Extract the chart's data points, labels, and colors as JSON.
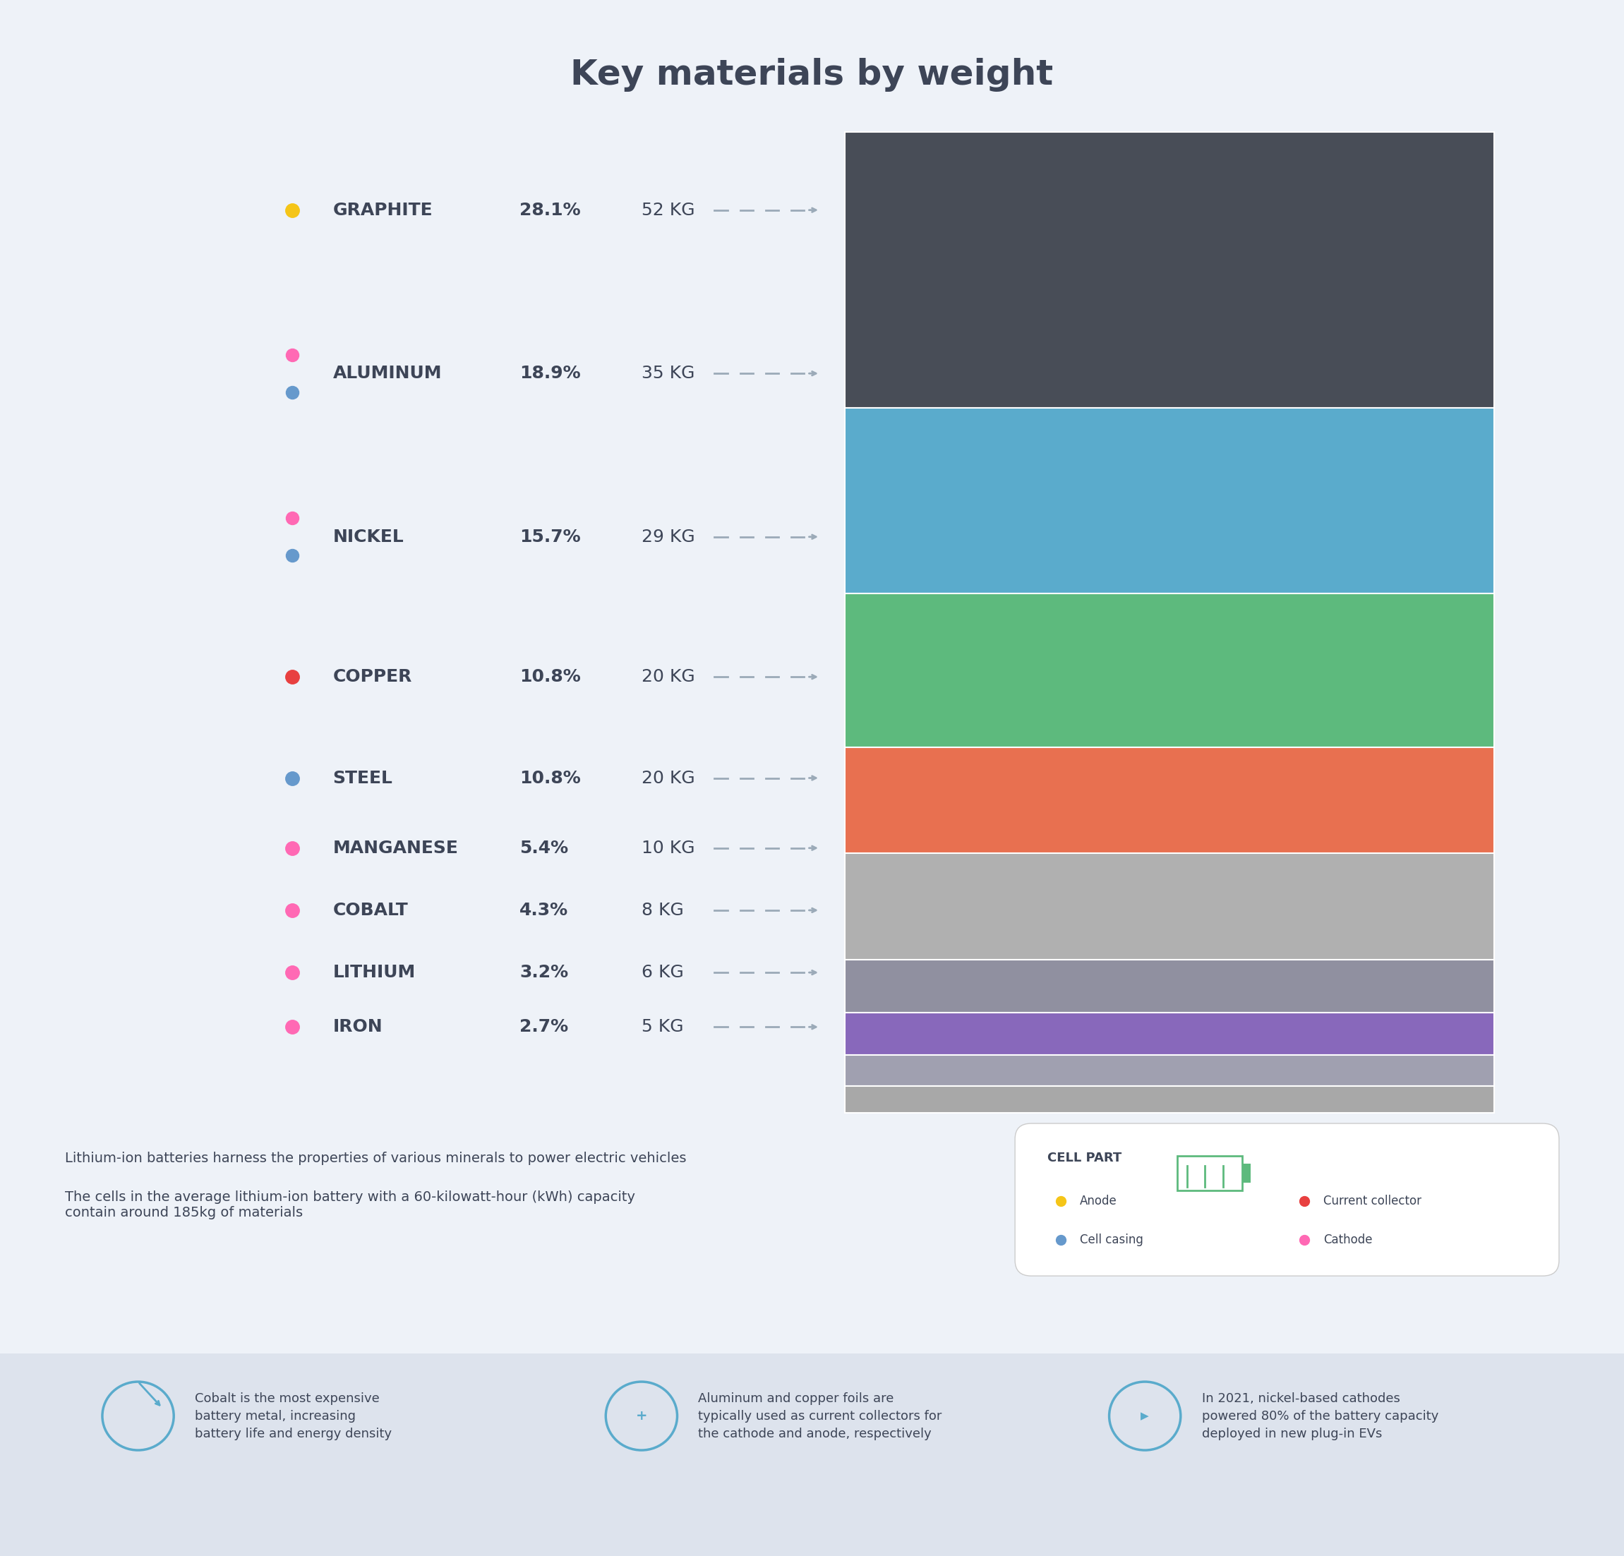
{
  "title": "Key materials by weight",
  "bg_color": "#EEF2F8",
  "footer_bg": "#DDE3ED",
  "text_color": "#3d4557",
  "materials": [
    {
      "name": "GRAPHITE",
      "pct": "28.1%",
      "kg": "52 KG",
      "dot_colors": [
        "#F5C518"
      ],
      "bar_color": "#484d57",
      "bar_height": 0.281
    },
    {
      "name": "ALUMINUM",
      "pct": "18.9%",
      "kg": "35 KG",
      "dot_colors": [
        "#FF69B4",
        "#6699CC"
      ],
      "bar_color": "#5aabcc",
      "bar_height": 0.189
    },
    {
      "name": "NICKEL",
      "pct": "15.7%",
      "kg": "29 KG",
      "dot_colors": [
        "#FF69B4",
        "#6699CC"
      ],
      "bar_color": "#5dba7d",
      "bar_height": 0.157
    },
    {
      "name": "COPPER",
      "pct": "10.8%",
      "kg": "20 KG",
      "dot_colors": [
        "#E84040"
      ],
      "bar_color": "#E87050",
      "bar_height": 0.108
    },
    {
      "name": "STEEL",
      "pct": "10.8%",
      "kg": "20 KG",
      "dot_colors": [
        "#6699CC"
      ],
      "bar_color": "#B0B0B0",
      "bar_height": 0.108
    },
    {
      "name": "MANGANESE",
      "pct": "5.4%",
      "kg": "10 KG",
      "dot_colors": [
        "#FF69B4"
      ],
      "bar_color": "#9090A0",
      "bar_height": 0.054
    },
    {
      "name": "COBALT",
      "pct": "4.3%",
      "kg": "8 KG",
      "dot_colors": [
        "#FF69B4"
      ],
      "bar_color": "#8868BB",
      "bar_height": 0.043
    },
    {
      "name": "LITHIUM",
      "pct": "3.2%",
      "kg": "6 KG",
      "dot_colors": [
        "#FF69B4"
      ],
      "bar_color": "#A0A0B0",
      "bar_height": 0.032
    },
    {
      "name": "IRON",
      "pct": "2.7%",
      "kg": "5 KG",
      "dot_colors": [
        "#FF69B4"
      ],
      "bar_color": "#A8A8A8",
      "bar_height": 0.027
    }
  ],
  "legend_items": [
    {
      "label": "Anode",
      "color": "#F5C518"
    },
    {
      "label": "Current collector",
      "color": "#E84040"
    },
    {
      "label": "Cell casing",
      "color": "#6699CC"
    },
    {
      "label": "Cathode",
      "color": "#FF69B4"
    }
  ],
  "footnote1": "Lithium-ion batteries harness the properties of various minerals to power electric vehicles",
  "footnote2": "The cells in the average lithium-ion battery with a 60-kilowatt-hour (kWh) capacity\ncontain around 185kg of materials",
  "footer_facts": [
    "Cobalt is the most expensive\nbattery metal, increasing\nbattery life and energy density",
    "Aluminum and copper foils are\ntypically used as current collectors for\nthe cathode and anode, respectively",
    "In 2021, nickel-based cathodes\npowered 80% of the battery capacity\ndeployed in new plug-in EVs"
  ]
}
